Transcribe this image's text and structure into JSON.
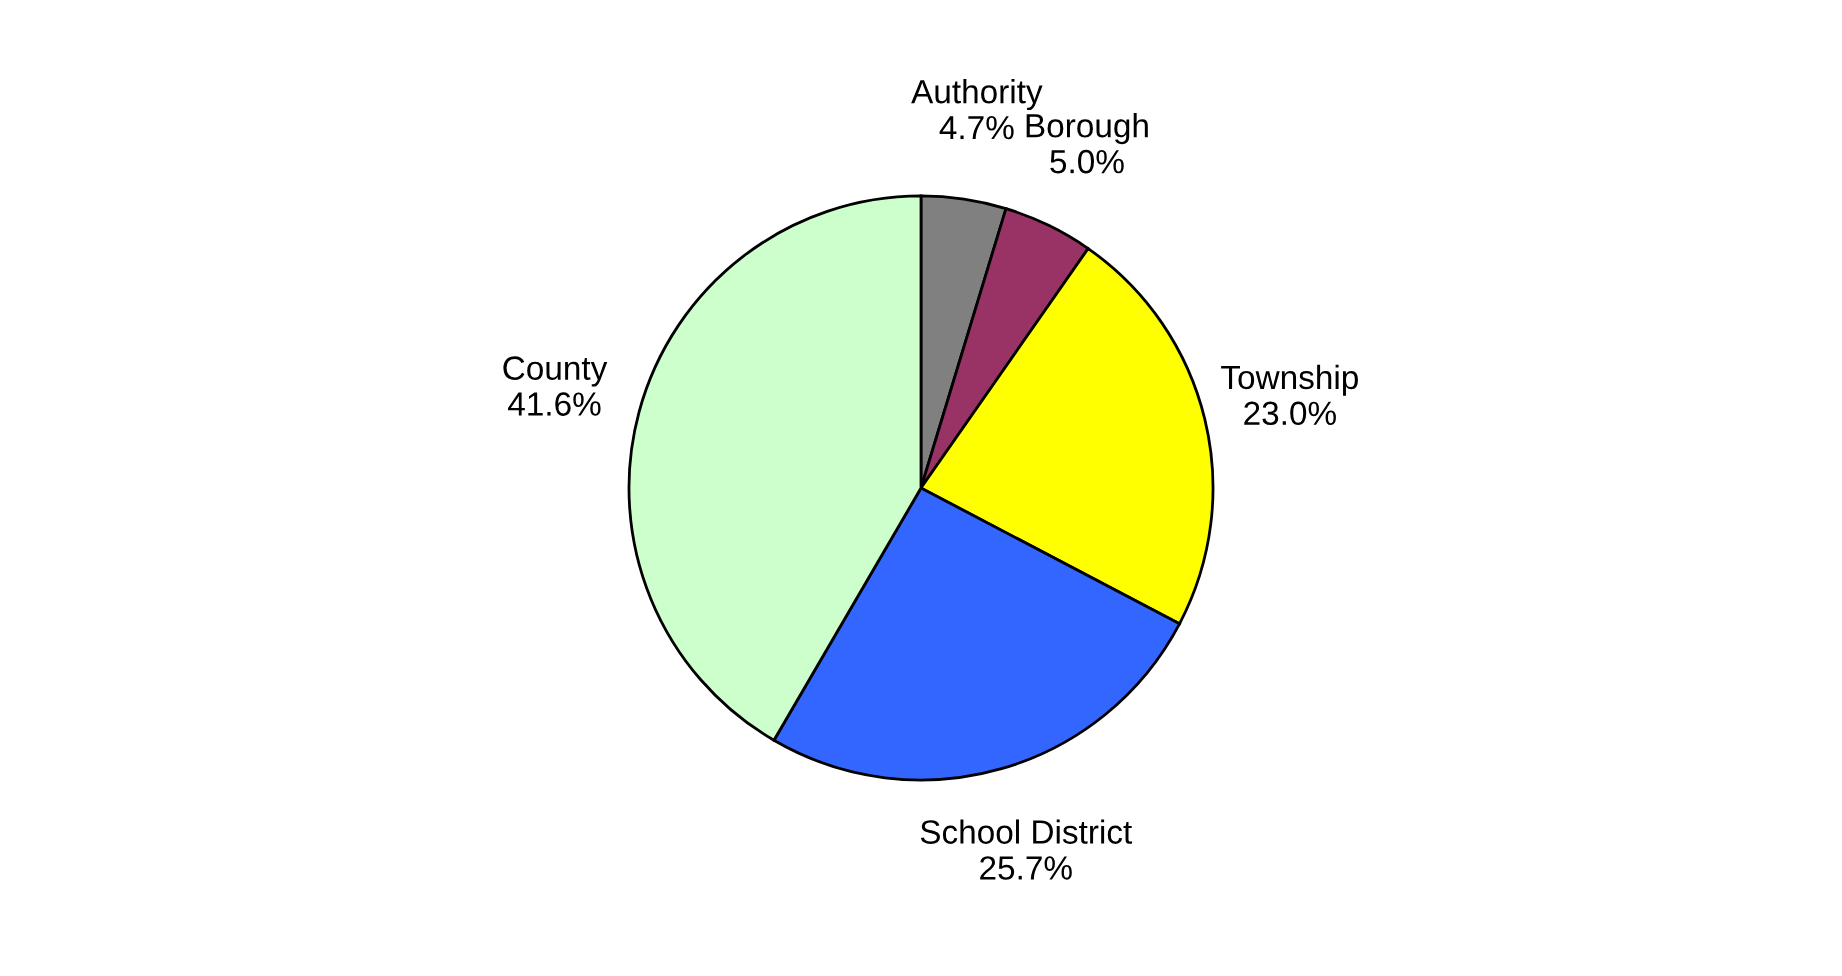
{
  "chart_data": {
    "type": "pie",
    "categories": [
      "Authority",
      "Borough",
      "Township",
      "School District",
      "County"
    ],
    "values": [
      4.7,
      5.0,
      23.0,
      25.7,
      41.6
    ],
    "value_labels": [
      "4.7%",
      "5.0%",
      "23.0%",
      "25.7%",
      "41.6%"
    ],
    "colors": [
      "#808080",
      "#993366",
      "#ffff00",
      "#3366ff",
      "#ccffcc"
    ],
    "legend": false
  }
}
